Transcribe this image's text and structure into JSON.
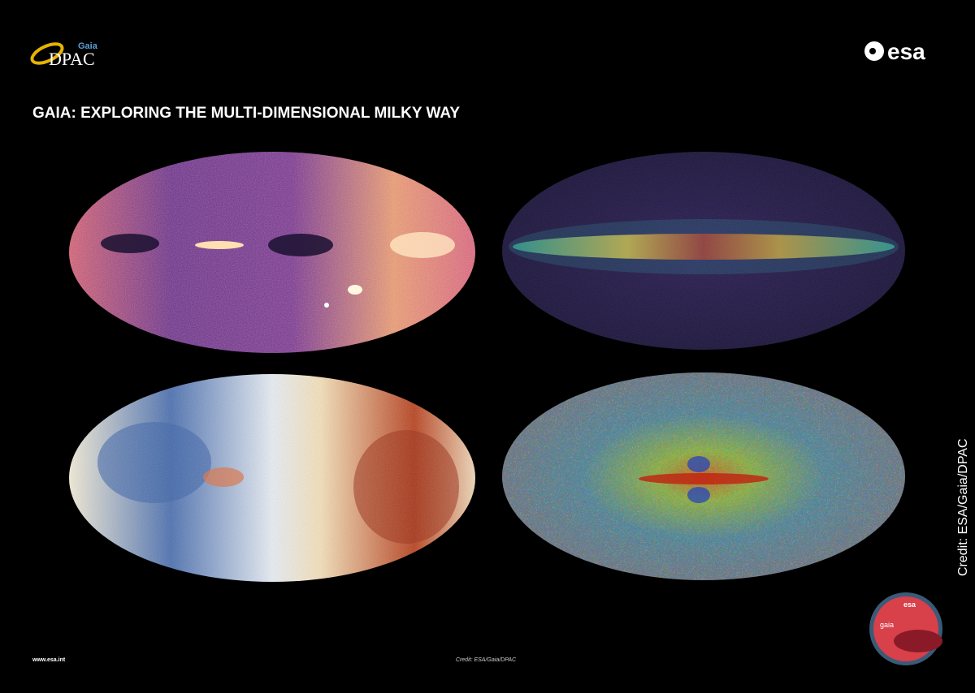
{
  "header": {
    "logo_left": {
      "brand": "Gaia",
      "name": "DPAC"
    },
    "logo_right": "esa",
    "title": "GAIA: EXPLORING THE MULTI-DIMENSIONAL MILKY WAY"
  },
  "side_credit": "Credit: ESA/Gaia/DPAC",
  "badge": {
    "agency": "esa",
    "mission": "gaia"
  },
  "footer": {
    "url": "www.esa.int",
    "credit": "Credit: ESA/Gaia/DPAC"
  }
}
